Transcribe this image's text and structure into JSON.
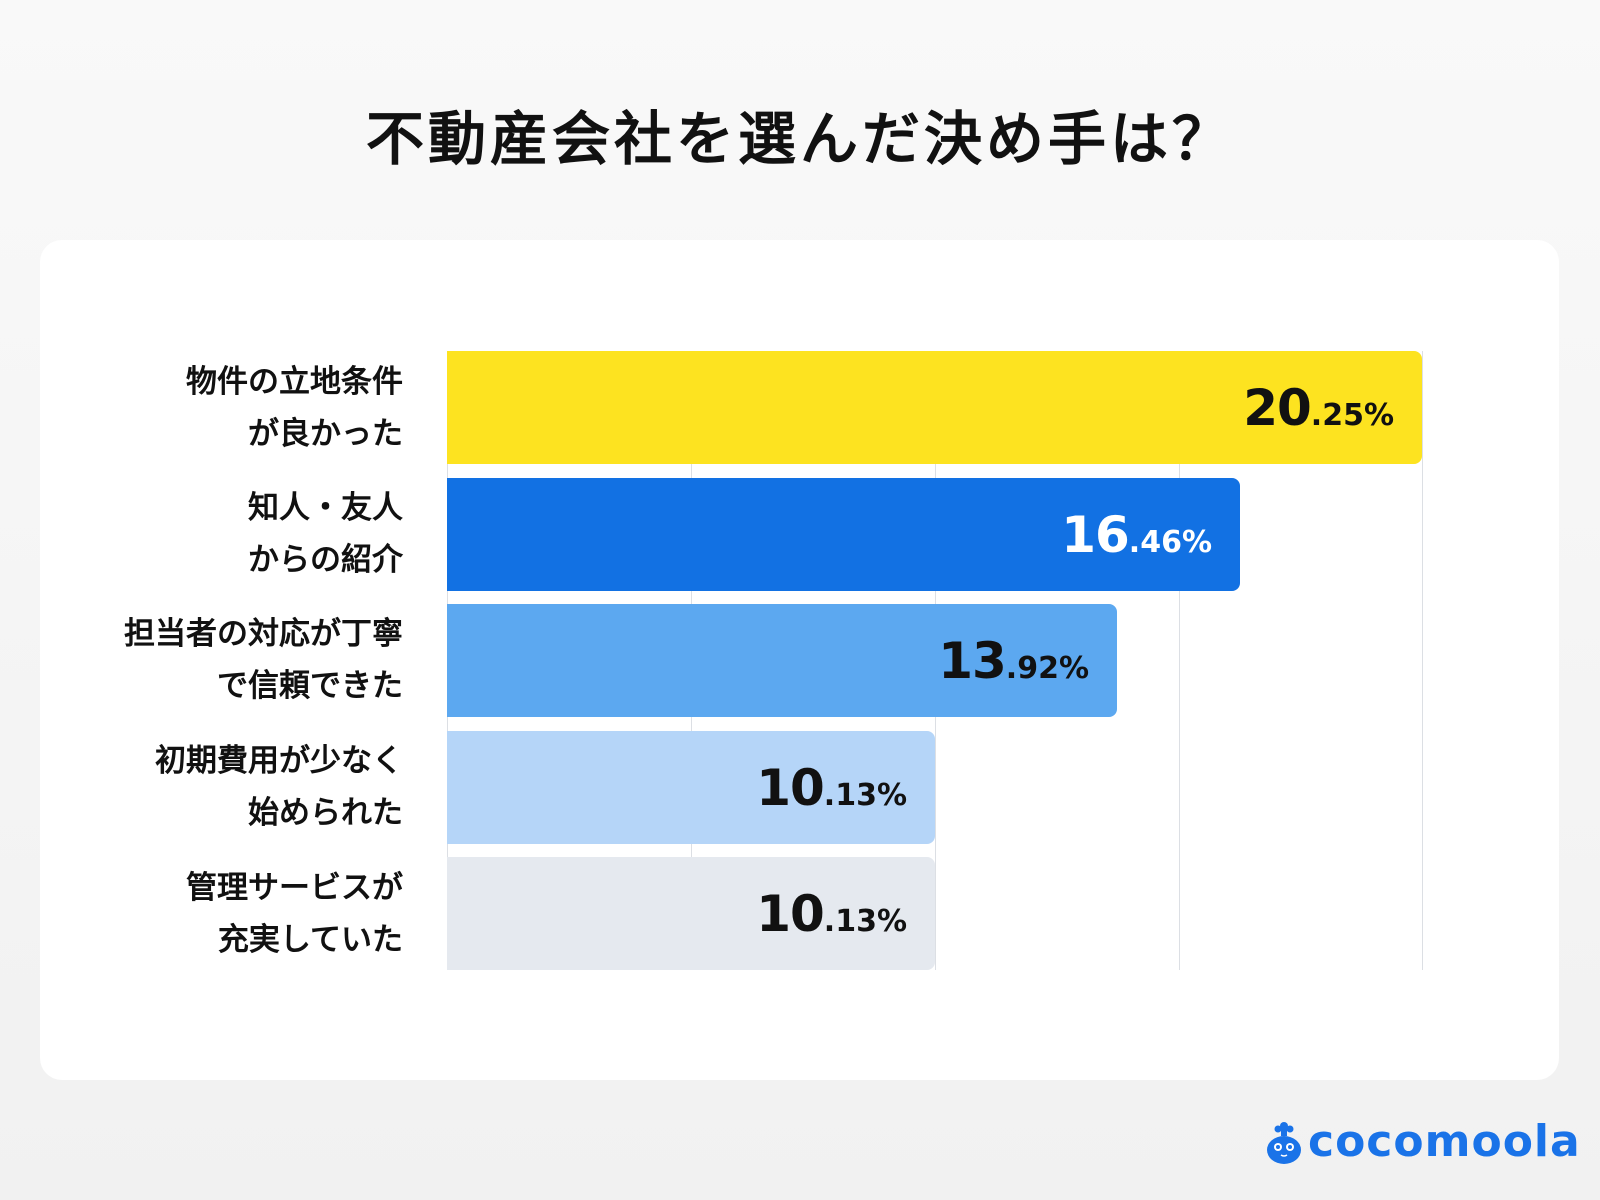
{
  "title": "不動産会社を選んだ決め手は？",
  "logo": {
    "text": "cocomoola",
    "color": "#1a73e8"
  },
  "colors": {
    "background": "#f3f3f3",
    "card": "#ffffff",
    "gridline": "#dcdfe4"
  },
  "rows": [
    {
      "label_line1": "物件の立地条件",
      "label_line2": "が良かった",
      "value_int": "20",
      "value_dec": ".25%",
      "value": 20.25,
      "color": "#fde320",
      "text_color": "#111111"
    },
    {
      "label_line1": "知人・友人",
      "label_line2": "からの紹介",
      "value_int": "16",
      "value_dec": ".46%",
      "value": 16.46,
      "color": "#1271e3",
      "text_color": "#ffffff"
    },
    {
      "label_line1": "担当者の対応が丁寧",
      "label_line2": "で信頼できた",
      "value_int": "13",
      "value_dec": ".92%",
      "value": 13.92,
      "color": "#5ca8f0",
      "text_color": "#111111"
    },
    {
      "label_line1": "初期費用が少なく",
      "label_line2": "始められた",
      "value_int": "10",
      "value_dec": ".13%",
      "value": 10.13,
      "color": "#b5d5f8",
      "text_color": "#111111"
    },
    {
      "label_line1": "管理サービスが",
      "label_line2": "充実していた",
      "value_int": "10",
      "value_dec": ".13%",
      "value": 10.13,
      "color": "#e5e9ef",
      "text_color": "#111111"
    }
  ],
  "chart_data": {
    "type": "bar",
    "orientation": "horizontal",
    "title": "不動産会社を選んだ決め手は？",
    "categories": [
      "物件の立地条件が良かった",
      "知人・友人からの紹介",
      "担当者の対応が丁寧で信頼できた",
      "初期費用が少なく始められた",
      "管理サービスが充実していた"
    ],
    "values": [
      20.25,
      16.46,
      13.92,
      10.13,
      10.13
    ],
    "unit": "%",
    "xlabel": "",
    "ylabel": "",
    "xlim": [
      0,
      20.25
    ],
    "grid": true,
    "gridlines_at": [
      5,
      10,
      15,
      20
    ],
    "legend": "none",
    "bar_colors": [
      "#fde320",
      "#1271e3",
      "#5ca8f0",
      "#b5d5f8",
      "#e5e9ef"
    ]
  }
}
